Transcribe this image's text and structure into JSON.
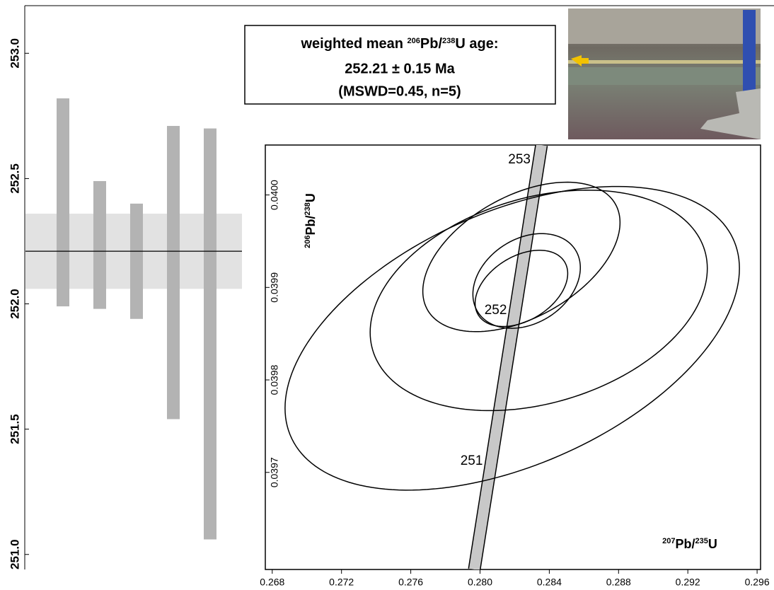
{
  "chart_data": [
    {
      "type": "weighted-mean",
      "low": [
        251.99,
        251.98,
        251.94,
        251.54,
        251.06
      ],
      "high": [
        252.82,
        252.49,
        252.4,
        252.71,
        252.7
      ],
      "mean": 252.21,
      "mean_band": [
        252.06,
        252.36
      ],
      "ylim": [
        250.94,
        253.19
      ],
      "yticks": [
        {
          "value": 251,
          "label": "251.0"
        },
        {
          "value": 251.5,
          "label": "251.5"
        },
        {
          "value": 252,
          "label": "252.0"
        },
        {
          "value": 252.5,
          "label": "252.5"
        },
        {
          "value": 253,
          "label": "253.0"
        }
      ],
      "bar_color": "#b3b3b3",
      "band_color": "#e2e2e2",
      "annotation": {
        "line1": [
          "weighted mean ",
          "206",
          "Pb/",
          "238",
          "U age:"
        ],
        "line2": "252.21 ± 0.15 Ma",
        "line3": "(MSWD=0.45, n=5)"
      }
    },
    {
      "type": "concordia",
      "xlabel": [
        "207",
        "Pb/",
        "235",
        "U"
      ],
      "ylabel": [
        "206",
        "Pb/",
        "238",
        "U"
      ],
      "xlim": [
        0.2676,
        0.2962
      ],
      "ylim": [
        0.039595,
        0.040054
      ],
      "xticks": [
        0.268,
        0.272,
        0.276,
        {
          "value": 0.28,
          "label": "0.280"
        },
        0.284,
        0.288,
        0.292,
        0.296
      ],
      "yticks": [
        0.0397,
        0.0398,
        0.0399,
        {
          "value": 0.04,
          "label": "0.0400"
        }
      ],
      "concordia": {
        "x": [
          0.27967,
          0.28355
        ],
        "y": [
          0.039595,
          0.040054
        ],
        "color": "#c8c8c8"
      },
      "age_labels": [
        {
          "label": "251",
          "x": 0.28065,
          "y": 0.039712
        },
        {
          "label": "252",
          "x": 0.28204,
          "y": 0.039875
        },
        {
          "label": "253",
          "x": 0.28341,
          "y": 0.040038
        }
      ],
      "ellipses": [
        {
          "x": 0.28186,
          "y": 0.039845,
          "sx": 0.01312,
          "sy": 0.0001642,
          "rho": 0.46
        },
        {
          "x": 0.28339,
          "y": 0.039886,
          "sx": 0.009735,
          "sy": 0.0001192,
          "rho": 0.29
        },
        {
          "x": 0.28239,
          "y": 0.039933,
          "sx": 0.005694,
          "sy": 8.08e-05,
          "rho": 0.46
        },
        {
          "x": 0.28269,
          "y": 0.039907,
          "sx": 0.003102,
          "sy": 5.12e-05,
          "rho": 0.28
        },
        {
          "x": 0.28239,
          "y": 0.039899,
          "sx": 0.002673,
          "sy": 4.12e-05,
          "rho": 0.39
        }
      ]
    }
  ]
}
